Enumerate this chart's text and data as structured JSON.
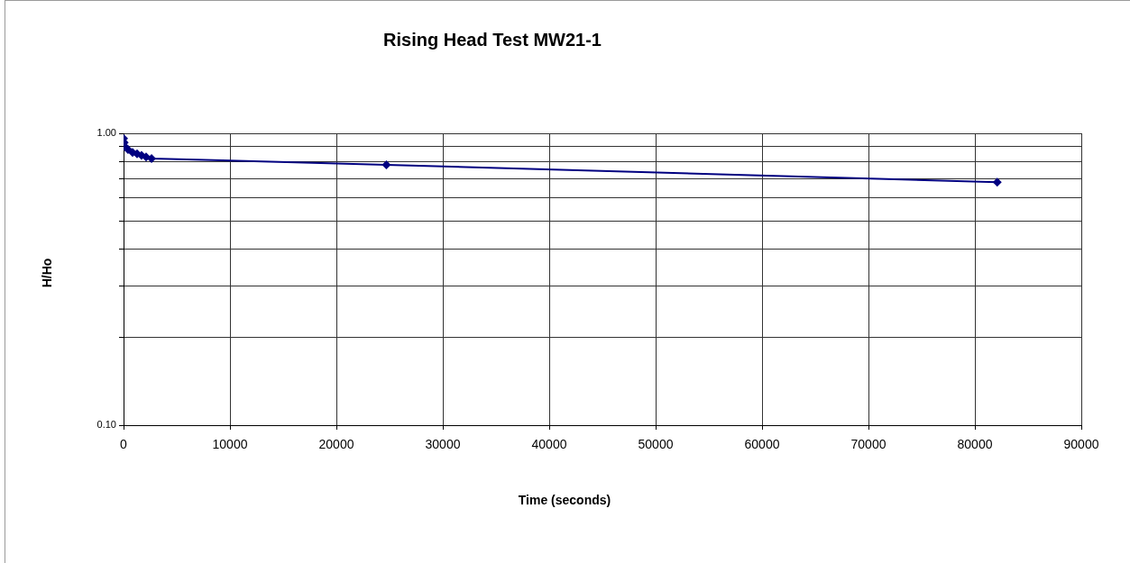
{
  "chart_data": {
    "type": "line",
    "title": "Rising Head Test MW21-1",
    "xlabel": "Time (seconds)",
    "ylabel": "H/Ho",
    "x": [
      0,
      60,
      120,
      420,
      850,
      1270,
      1690,
      2120,
      2630,
      24700,
      82100
    ],
    "series": [
      {
        "color": "#000080",
        "values": [
          0.96,
          0.93,
          0.9,
          0.88,
          0.86,
          0.85,
          0.84,
          0.83,
          0.82,
          0.78,
          0.68
        ]
      }
    ],
    "xlim": [
      0,
      90000
    ],
    "xticks": [
      0,
      10000,
      20000,
      30000,
      40000,
      50000,
      60000,
      70000,
      80000,
      90000
    ],
    "ylim": [
      0.1,
      1
    ],
    "yticks": [
      {
        "value": 0.1,
        "label": "0.10"
      },
      {
        "value": 0.2,
        "label": null
      },
      {
        "value": 0.3,
        "label": null
      },
      {
        "value": 0.4,
        "label": null
      },
      {
        "value": 0.5,
        "label": null
      },
      {
        "value": 0.6,
        "label": null
      },
      {
        "value": 0.7,
        "label": null
      },
      {
        "value": 0.8,
        "label": null
      },
      {
        "value": 0.9,
        "label": null
      },
      {
        "value": 1,
        "label": "1.00"
      }
    ],
    "log": "y",
    "grid": true,
    "marker": "diamond",
    "line_style": "solid"
  }
}
